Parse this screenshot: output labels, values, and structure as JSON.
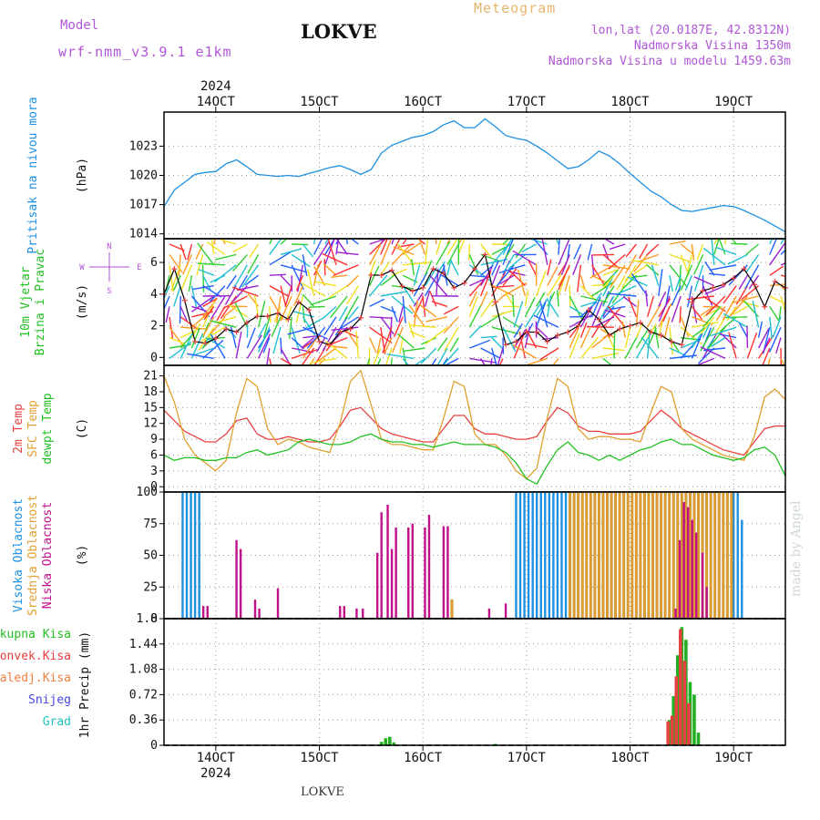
{
  "header": {
    "title": "LOKVE",
    "meteogram": "Meteogram",
    "model_label": "Model",
    "model_value": "wrf-nmm_v3.9.1  e1km",
    "coords": "lon,lat (20.0187E, 42.8312N)",
    "altitude": "Nadmorska Visina 1350m",
    "model_altitude": "Nadmorska Visina u modelu 1459.63m"
  },
  "footer": {
    "station": "LOKVE"
  },
  "watermark": "made by Angel",
  "colors": {
    "pressure": "#1e90e0",
    "t2m": "#e84040",
    "tsfc": "#e0a030",
    "dewpt": "#22c022",
    "high_cloud": "#1e90e0",
    "mid_cloud": "#e0a030",
    "low_cloud": "#c0108a",
    "total_precip": "#22b022",
    "conv_precip": "#e84040"
  },
  "chart_data": [
    {
      "type": "line",
      "panel": "pressure",
      "ylabel": "(hPa)",
      "side_labels": [
        "Pritisak na nivou mora"
      ],
      "yticks": [
        1014,
        1017,
        1020,
        1023
      ],
      "ylim": [
        1013.5,
        1026.5
      ],
      "x_axis_year": "2024",
      "x_ticks": [
        "14OCT",
        "15OCT",
        "16OCT",
        "17OCT",
        "18OCT",
        "19OCT"
      ],
      "x_tick_days": [
        14,
        15,
        16,
        17,
        18,
        19
      ],
      "xlim": [
        13.5,
        19.5
      ],
      "grid": true,
      "series": [
        {
          "x": [
            13.5,
            13.6,
            13.7,
            13.8,
            13.9,
            14.0,
            14.1,
            14.2,
            14.3,
            14.4,
            14.5,
            14.6,
            14.7,
            14.8,
            14.9,
            15.0,
            15.1,
            15.2,
            15.3,
            15.4,
            15.5,
            15.6,
            15.7,
            15.8,
            15.9,
            16.0,
            16.1,
            16.2,
            16.3,
            16.4,
            16.5,
            16.6,
            16.7,
            16.8,
            16.9,
            17.0,
            17.1,
            17.2,
            17.3,
            17.4,
            17.5,
            17.6,
            17.7,
            17.8,
            17.9,
            18.0,
            18.1,
            18.2,
            18.3,
            18.4,
            18.5,
            18.6,
            18.7,
            18.8,
            18.9,
            19.0,
            19.1,
            19.2,
            19.3,
            19.4,
            19.5
          ],
          "y": [
            1016.8,
            1018.5,
            1019.3,
            1020.1,
            1020.3,
            1020.4,
            1021.2,
            1021.6,
            1020.9,
            1020.1,
            1020.0,
            1019.9,
            1020.0,
            1019.9,
            1020.2,
            1020.5,
            1020.8,
            1021.0,
            1020.6,
            1020.1,
            1020.6,
            1022.3,
            1023.1,
            1023.5,
            1023.9,
            1024.1,
            1024.5,
            1025.2,
            1025.6,
            1024.9,
            1024.9,
            1025.8,
            1025.0,
            1024.1,
            1023.8,
            1023.6,
            1023.0,
            1022.3,
            1021.5,
            1020.7,
            1020.9,
            1021.6,
            1022.5,
            1022.0,
            1021.2,
            1020.2,
            1019.3,
            1018.4,
            1017.8,
            1017.0,
            1016.4,
            1016.3,
            1016.5,
            1016.7,
            1016.9,
            1016.8,
            1016.4,
            1015.9,
            1015.4,
            1014.8,
            1014.2
          ]
        }
      ]
    },
    {
      "type": "line",
      "panel": "wind",
      "ylabel": "(m/s)",
      "side_labels": [
        "10m Vjetar",
        "Brzina i Pravac"
      ],
      "compass": [
        "N",
        "W",
        "E",
        "S"
      ],
      "yticks": [
        0,
        2,
        4,
        6
      ],
      "ylim": [
        -0.5,
        7.5
      ],
      "grid": true,
      "series": [
        {
          "x": [
            13.5,
            13.6,
            13.7,
            13.8,
            13.9,
            14.0,
            14.1,
            14.2,
            14.3,
            14.4,
            14.5,
            14.6,
            14.7,
            14.8,
            14.9,
            15.0,
            15.1,
            15.2,
            15.3,
            15.4,
            15.5,
            15.6,
            15.7,
            15.8,
            15.9,
            16.0,
            16.1,
            16.2,
            16.3,
            16.4,
            16.5,
            16.6,
            16.7,
            16.8,
            16.9,
            17.0,
            17.1,
            17.2,
            17.3,
            17.4,
            17.5,
            17.6,
            17.7,
            17.8,
            17.9,
            18.0,
            18.1,
            18.2,
            18.3,
            18.4,
            18.5,
            18.6,
            18.7,
            18.8,
            18.9,
            19.0,
            19.1,
            19.2,
            19.3,
            19.4,
            19.5
          ],
          "y": [
            4.0,
            5.6,
            3.6,
            1.0,
            0.9,
            1.2,
            1.8,
            1.6,
            2.2,
            2.6,
            2.6,
            2.8,
            2.4,
            3.5,
            3.0,
            1.0,
            0.8,
            1.6,
            1.8,
            2.5,
            5.2,
            5.2,
            5.5,
            4.5,
            4.2,
            4.4,
            5.6,
            5.3,
            4.4,
            4.7,
            5.6,
            6.5,
            3.5,
            0.8,
            1.0,
            1.6,
            1.6,
            1.0,
            1.4,
            1.6,
            2.0,
            3.0,
            2.4,
            1.4,
            1.8,
            2.0,
            2.2,
            1.6,
            1.4,
            1.0,
            0.8,
            3.5,
            4.2,
            4.4,
            4.6,
            5.0,
            5.6,
            4.6,
            3.2,
            4.8,
            4.4
          ]
        }
      ]
    },
    {
      "type": "line",
      "panel": "temperature",
      "ylabel": "(C)",
      "side_labels": [
        "2m Temp",
        "SFC Temp",
        "dewpt Temp"
      ],
      "yticks": [
        0,
        3,
        6,
        9,
        12,
        15,
        18,
        21
      ],
      "ylim": [
        -1,
        23
      ],
      "grid": true,
      "series": [
        {
          "name": "2m Temp",
          "x": [
            13.5,
            13.6,
            13.7,
            13.8,
            13.9,
            14.0,
            14.1,
            14.2,
            14.3,
            14.4,
            14.5,
            14.6,
            14.7,
            14.8,
            14.9,
            15.0,
            15.1,
            15.2,
            15.3,
            15.4,
            15.5,
            15.6,
            15.7,
            15.8,
            15.9,
            16.0,
            16.1,
            16.2,
            16.3,
            16.4,
            16.5,
            16.6,
            16.7,
            16.8,
            16.9,
            17.0,
            17.1,
            17.2,
            17.3,
            17.4,
            17.5,
            17.6,
            17.7,
            17.8,
            17.9,
            18.0,
            18.1,
            18.2,
            18.3,
            18.4,
            18.5,
            18.6,
            18.7,
            18.8,
            18.9,
            19.0,
            19.1,
            19.2,
            19.3,
            19.4,
            19.5
          ],
          "y": [
            14.5,
            12.5,
            10.5,
            9.5,
            8.5,
            8.5,
            10.0,
            12.5,
            13.0,
            10.0,
            9.0,
            9.0,
            9.5,
            9.0,
            8.5,
            8.5,
            9.0,
            11.5,
            14.5,
            15.0,
            13.0,
            11.0,
            10.0,
            9.5,
            9.0,
            8.5,
            8.5,
            11.0,
            13.5,
            13.5,
            11.0,
            10.0,
            10.0,
            9.5,
            9.0,
            9.0,
            9.5,
            12.5,
            15.0,
            14.0,
            11.5,
            10.5,
            10.5,
            10.0,
            10.0,
            10.0,
            10.5,
            12.5,
            14.5,
            13.0,
            11.0,
            10.0,
            9.0,
            8.0,
            7.0,
            6.5,
            6.0,
            8.5,
            11.0,
            11.5,
            11.5
          ]
        },
        {
          "name": "SFC Temp",
          "x": [
            13.5,
            13.6,
            13.7,
            13.8,
            13.9,
            14.0,
            14.1,
            14.2,
            14.3,
            14.4,
            14.5,
            14.6,
            14.7,
            14.8,
            14.9,
            15.0,
            15.1,
            15.2,
            15.3,
            15.4,
            15.5,
            15.6,
            15.7,
            15.8,
            15.9,
            16.0,
            16.1,
            16.2,
            16.3,
            16.4,
            16.5,
            16.6,
            16.7,
            16.8,
            16.9,
            17.0,
            17.1,
            17.2,
            17.3,
            17.4,
            17.5,
            17.6,
            17.7,
            17.8,
            17.9,
            18.0,
            18.1,
            18.2,
            18.3,
            18.4,
            18.5,
            18.6,
            18.7,
            18.8,
            18.9,
            19.0,
            19.1,
            19.2,
            19.3,
            19.4,
            19.5
          ],
          "y": [
            21.0,
            16.0,
            9.0,
            6.0,
            4.5,
            3.0,
            5.0,
            14.0,
            20.5,
            19.0,
            11.0,
            8.0,
            9.0,
            8.5,
            7.5,
            7.0,
            6.5,
            12.0,
            20.0,
            22.0,
            15.5,
            9.0,
            8.0,
            8.0,
            7.5,
            7.0,
            7.0,
            13.0,
            20.0,
            19.0,
            10.0,
            8.0,
            8.0,
            6.0,
            3.0,
            1.5,
            3.5,
            13.0,
            20.5,
            19.0,
            11.0,
            9.0,
            9.5,
            9.5,
            9.0,
            9.0,
            8.5,
            14.0,
            19.0,
            18.0,
            11.0,
            9.0,
            8.0,
            7.0,
            6.0,
            5.5,
            5.0,
            9.5,
            17.0,
            18.5,
            16.5
          ]
        },
        {
          "name": "dewpt Temp",
          "x": [
            13.5,
            13.6,
            13.7,
            13.8,
            13.9,
            14.0,
            14.1,
            14.2,
            14.3,
            14.4,
            14.5,
            14.6,
            14.7,
            14.8,
            14.9,
            15.0,
            15.1,
            15.2,
            15.3,
            15.4,
            15.5,
            15.6,
            15.7,
            15.8,
            15.9,
            16.0,
            16.1,
            16.2,
            16.3,
            16.4,
            16.5,
            16.6,
            16.7,
            16.8,
            16.9,
            17.0,
            17.1,
            17.2,
            17.3,
            17.4,
            17.5,
            17.6,
            17.7,
            17.8,
            17.9,
            18.0,
            18.1,
            18.2,
            18.3,
            18.4,
            18.5,
            18.6,
            18.7,
            18.8,
            18.9,
            19.0,
            19.1,
            19.2,
            19.3,
            19.4,
            19.5
          ],
          "y": [
            6.0,
            5.0,
            5.5,
            5.5,
            5.0,
            5.0,
            5.5,
            5.5,
            6.5,
            7.0,
            6.0,
            6.5,
            7.0,
            8.5,
            9.0,
            8.5,
            8.0,
            8.0,
            8.5,
            9.5,
            10.0,
            9.0,
            8.5,
            8.5,
            8.0,
            8.0,
            7.5,
            8.0,
            8.5,
            8.0,
            8.0,
            8.0,
            7.5,
            6.5,
            4.5,
            1.5,
            0.5,
            4.0,
            7.0,
            8.5,
            6.5,
            6.0,
            5.0,
            6.0,
            5.0,
            6.0,
            7.0,
            7.5,
            8.5,
            9.0,
            8.0,
            8.0,
            7.0,
            6.0,
            5.5,
            5.0,
            5.5,
            7.0,
            7.5,
            6.0,
            2.0
          ]
        }
      ]
    },
    {
      "type": "bar",
      "panel": "clouds",
      "ylabel": "(%)",
      "side_labels": [
        "Visoka Oblacnost",
        "Srednja Oblacnost",
        "Niska Oblacnost"
      ],
      "yticks": [
        0,
        25,
        50,
        75,
        100
      ],
      "ylim": [
        0,
        100
      ],
      "grid": true,
      "series": [
        {
          "name": "Visoka Oblacnost",
          "x": [
            13.68,
            13.72,
            13.76,
            13.8,
            13.84,
            16.9,
            16.94,
            16.98,
            17.02,
            17.06,
            17.1,
            17.14,
            17.18,
            17.22,
            17.26,
            17.3,
            17.34,
            17.38,
            19.0,
            19.04,
            19.08
          ],
          "y": [
            100,
            100,
            100,
            100,
            100,
            100,
            100,
            100,
            100,
            100,
            100,
            100,
            100,
            100,
            100,
            100,
            100,
            100,
            100,
            100,
            78
          ]
        },
        {
          "name": "Srednja Oblacnost",
          "x": [
            16.28,
            17.42,
            17.46,
            17.5,
            17.54,
            17.58,
            17.62,
            17.66,
            17.7,
            17.74,
            17.78,
            17.82,
            17.86,
            17.9,
            17.94,
            17.98,
            18.02,
            18.06,
            18.1,
            18.14,
            18.18,
            18.22,
            18.26,
            18.3,
            18.34,
            18.38,
            18.42,
            18.46,
            18.5,
            18.54,
            18.58,
            18.62,
            18.66,
            18.7,
            18.74,
            18.78,
            18.82,
            18.86,
            18.9,
            18.94,
            18.98
          ],
          "y": [
            15,
            100,
            100,
            100,
            100,
            100,
            100,
            100,
            100,
            100,
            100,
            100,
            100,
            100,
            100,
            100,
            100,
            100,
            100,
            100,
            100,
            100,
            100,
            100,
            100,
            100,
            100,
            100,
            100,
            100,
            100,
            100,
            100,
            100,
            100,
            100,
            100,
            100,
            100,
            100,
            100
          ]
        },
        {
          "name": "Niska Oblacnost",
          "x": [
            13.88,
            13.92,
            14.2,
            14.24,
            14.38,
            14.42,
            14.6,
            15.2,
            15.24,
            15.36,
            15.42,
            15.56,
            15.6,
            15.66,
            15.7,
            15.74,
            15.86,
            15.9,
            16.02,
            16.06,
            16.2,
            16.24,
            16.64,
            16.8,
            18.44,
            18.48,
            18.52,
            18.56,
            18.6,
            18.64,
            18.7,
            18.74
          ],
          "y": [
            10,
            10,
            62,
            55,
            15,
            8,
            24,
            10,
            10,
            8,
            8,
            52,
            84,
            90,
            55,
            72,
            72,
            75,
            72,
            82,
            73,
            73,
            8,
            12,
            8,
            62,
            92,
            88,
            78,
            68,
            52,
            25
          ]
        }
      ]
    },
    {
      "type": "bar",
      "panel": "precipitation",
      "ylabel": "1hr Precip (mm)",
      "side_labels": [
        "Ukupna Kisa",
        "Konvek.Kisa",
        "Zaledj.Kisa",
        "Snijeg",
        "Grad"
      ],
      "yticks": [
        0,
        0.36,
        0.72,
        1.08,
        1.44,
        1.8
      ],
      "ylim": [
        0,
        1.8
      ],
      "grid": true,
      "series": [
        {
          "name": "Ukupna Kisa",
          "x": [
            15.6,
            15.64,
            15.68,
            15.72,
            16.04,
            16.7,
            18.38,
            18.42,
            18.46,
            18.5,
            18.54,
            18.58,
            18.62,
            18.66
          ],
          "y": [
            0.05,
            0.1,
            0.12,
            0.04,
            0.01,
            0.02,
            0.36,
            0.7,
            1.28,
            1.68,
            1.5,
            0.9,
            0.72,
            0.18
          ]
        },
        {
          "name": "Konvek.Kisa",
          "x": [
            18.38,
            18.42,
            18.46,
            18.5,
            18.54,
            18.58
          ],
          "y": [
            0.34,
            0.42,
            0.98,
            1.65,
            1.2,
            0.6
          ]
        }
      ]
    }
  ]
}
